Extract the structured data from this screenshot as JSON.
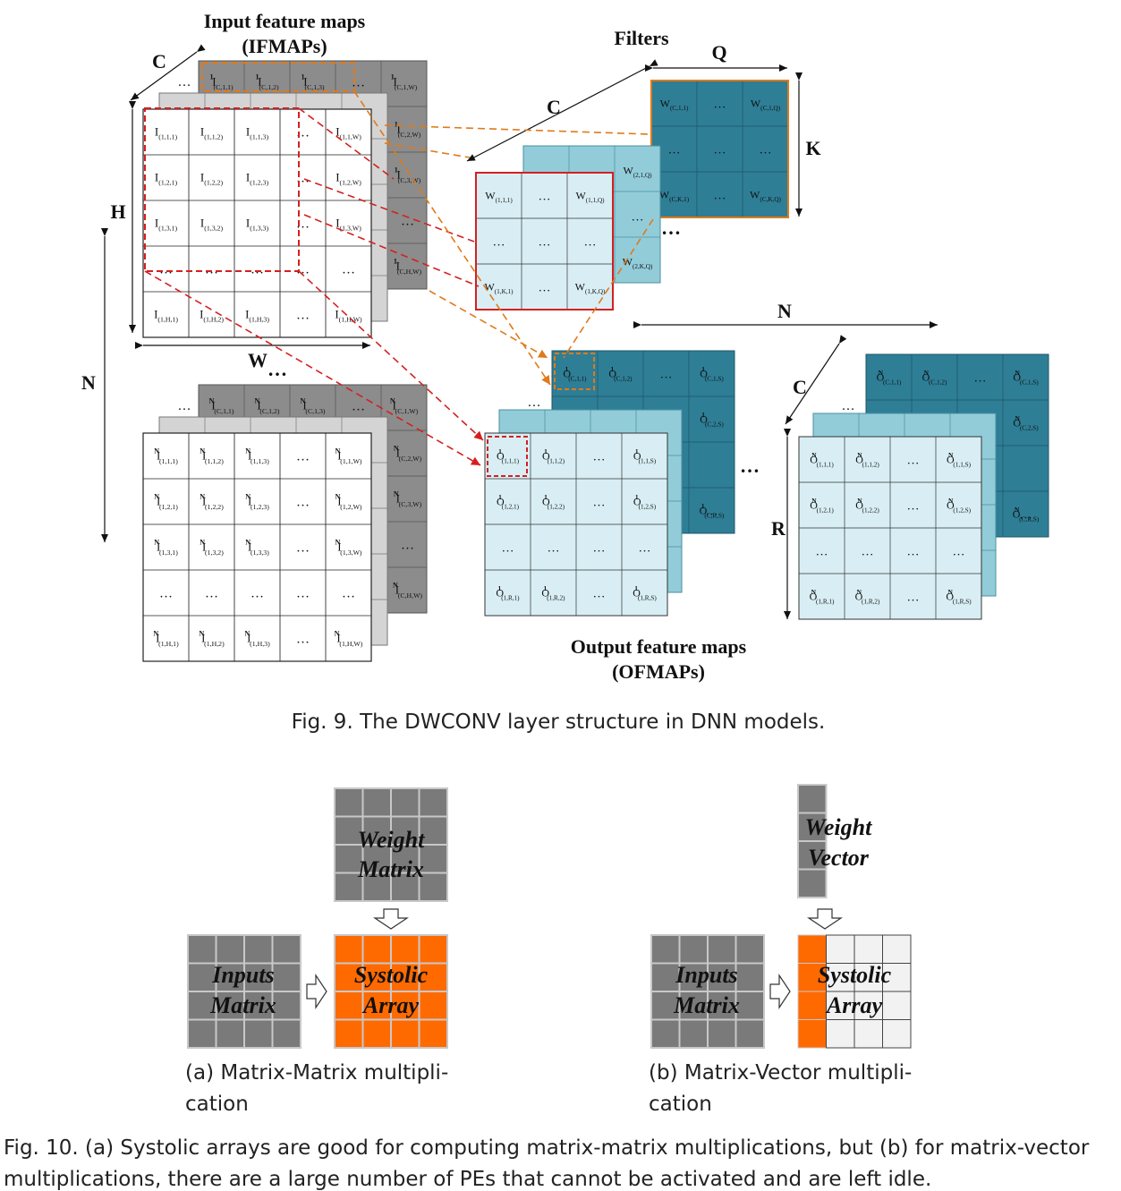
{
  "fig9": {
    "ifmaps_title_1": "Input feature maps",
    "ifmaps_title_2": "(IFMAPs)",
    "filters_title": "Filters",
    "ofmaps_title_1": "Output feature maps",
    "ofmaps_title_2": "(OFMAPs)",
    "caption": "Fig. 9.  The DWCONV layer structure in DNN models.",
    "dim_labels": {
      "C_ifmap": "C",
      "H": "H",
      "W": "W",
      "N_left": "N",
      "C_filter": "C",
      "Q": "Q",
      "K": "K",
      "N_ofmap": "N",
      "C_ofmap": "C",
      "R": "R"
    },
    "ellipsis": "…",
    "ifmap1_front": [
      [
        "I(1,1,1)",
        "I(1,1,2)",
        "I(1,1,3)",
        "…",
        "I(1,1,W)"
      ],
      [
        "I(1,2,1)",
        "I(1,2,2)",
        "I(1,2,3)",
        "…",
        "I(1,2,W)"
      ],
      [
        "I(1,3,1)",
        "I(1,3,2)",
        "I(1,3,3)",
        "…",
        "I(1,3,W)"
      ],
      [
        "…",
        "…",
        "…",
        "…",
        "…"
      ],
      [
        "I(1,H,1)",
        "I(1,H,2)",
        "I(1,H,3)",
        "…",
        "I(1,H,W)"
      ]
    ],
    "ifmap1_back_top": [
      "I1(C,1,1)",
      "I1(C,1,2)",
      "I1(C,1,3)",
      "…",
      "I1(C,1,W)"
    ],
    "ifmap1_back_right": [
      "I1(C,2,W)",
      "I1(C,3,W)",
      "…",
      "I1(C,H,W)"
    ],
    "ifmapN_front": [
      [
        "IN(1,1,1)",
        "IN(1,1,2)",
        "IN(1,1,3)",
        "…",
        "IN(1,1,W)"
      ],
      [
        "IN(1,2,1)",
        "IN(1,2,2)",
        "IN(1,2,3)",
        "…",
        "IN(1,2,W)"
      ],
      [
        "IN(1,3,1)",
        "IN(1,3,2)",
        "IN(1,3,3)",
        "…",
        "IN(1,3,W)"
      ],
      [
        "…",
        "…",
        "…",
        "…",
        "…"
      ],
      [
        "IN(1,H,1)",
        "IN(1,H,2)",
        "IN(1,H,3)",
        "…",
        "IN(1,H,W)"
      ]
    ],
    "ifmapN_back_top": [
      "IN(C,1,1)",
      "IN(C,1,2)",
      "IN(C,1,3)",
      "…",
      "IN(C,1,W)"
    ],
    "ifmapN_back_right": [
      "IN(C,2,W)",
      "IN(C,3,W)",
      "…",
      "IN(C,H,W)"
    ],
    "filter_front": [
      [
        "W(1,1,1)",
        "…",
        "W(1,1,Q)"
      ],
      [
        "…",
        "…",
        "…"
      ],
      [
        "W(1,K,1)",
        "…",
        "W(1,K,Q)"
      ]
    ],
    "filter_mid_right": [
      "W(2,1,Q)",
      "…",
      "W(2,K,Q)"
    ],
    "filter_back": [
      [
        "W(C,1,1)",
        "…",
        "W(C,1,Q)"
      ],
      [
        "…",
        "…",
        "…"
      ],
      [
        "W(C,K,1)",
        "…",
        "W(C,K,Q)"
      ]
    ],
    "ofmap1_front": [
      [
        "O1(1,1,1)",
        "O1(1,1,2)",
        "…",
        "O1(1,1,S)"
      ],
      [
        "O1(1,2,1)",
        "O1(1,2,2)",
        "…",
        "O1(1,2,S)"
      ],
      [
        "…",
        "…",
        "…",
        "…"
      ],
      [
        "O1(1,R,1)",
        "O1(1,R,2)",
        "…",
        "O1(1,R,S)"
      ]
    ],
    "ofmap1_back_top": [
      "O1(C,1,1)",
      "O1(C,1,2)",
      "…",
      "O1(C,1,S)"
    ],
    "ofmap1_back_right": [
      "O1(C,2,S)",
      "…",
      "O1(C,R,S)"
    ],
    "ofmapN_front": [
      [
        "ON(1,1,1)",
        "ON(1,1,2)",
        "…",
        "ON(1,1,S)"
      ],
      [
        "ON(1,2,1)",
        "ON(1,2,2)",
        "…",
        "ON(1,2,S)"
      ],
      [
        "…",
        "…",
        "…",
        "…"
      ],
      [
        "ON(1,R,1)",
        "ON(1,R,2)",
        "…",
        "ON(1,R,S)"
      ]
    ],
    "ofmapN_back_top": [
      "ON(C,1,1)",
      "ON(C,1,2)",
      "…",
      "ON(C,1,S)"
    ],
    "ofmapN_back_right": [
      "ON(C,2,S)",
      "…",
      "ON(C,R,S)"
    ]
  },
  "fig10": {
    "a": {
      "weight_line1": "Weight",
      "weight_line2": "Matrix",
      "inputs_line1": "Inputs",
      "inputs_line2": "Matrix",
      "systolic_line1": "Systolic",
      "systolic_line2": "Array",
      "sub_caption_1": "(a) Matrix-Matrix multipli-",
      "sub_caption_2": "cation"
    },
    "b": {
      "weight_line1": "Weight",
      "weight_line2": "Vector",
      "inputs_line1": "Inputs",
      "inputs_line2": "Matrix",
      "systolic_line1": "Systolic",
      "systolic_line2": "Array",
      "sub_caption_1": "(b) Matrix-Vector multipli-",
      "sub_caption_2": "cation"
    },
    "caption_1": "Fig. 10.  (a) Systolic arrays are good for computing matrix-matrix multiplications, but (b) for matrix-vector",
    "caption_2": "multiplications, there are a large number of PEs that cannot be activated and are left idle."
  },
  "colors": {
    "ifmap_back": "#8c8c8c",
    "ifmap_mid": "#d4d4d4",
    "filter_back": "#2e7e96",
    "filter_mid": "#92ccd9",
    "filter_front": "#d8eef4",
    "highlight_red": "#d42020",
    "highlight_orange": "#e07a1a",
    "systolic_orange": "#ff6a00",
    "gray_block": "#7a7a7a"
  }
}
